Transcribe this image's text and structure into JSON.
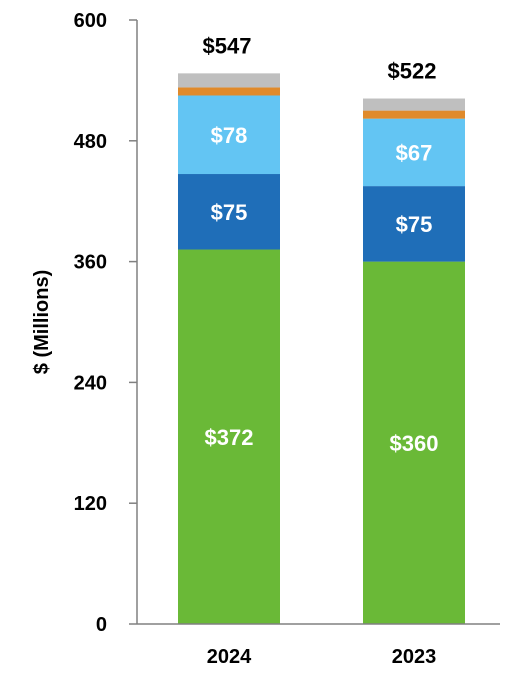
{
  "chart_data": {
    "type": "bar",
    "stacked": true,
    "categories": [
      "2024",
      "2023"
    ],
    "ylabel": "$ (Millions)",
    "ylim": [
      0,
      600
    ],
    "yticks": [
      0,
      120,
      240,
      360,
      480,
      600
    ],
    "grid": false,
    "series": [
      {
        "values": [
          372,
          360
        ],
        "color": "#6ab937",
        "labels": [
          "$372",
          "$360"
        ]
      },
      {
        "values": [
          75,
          75
        ],
        "color": "#1f6eb8",
        "labels": [
          "$75",
          "$75"
        ]
      },
      {
        "values": [
          78,
          67
        ],
        "color": "#63c5f3",
        "labels": [
          "$78",
          "$67"
        ]
      },
      {
        "values": [
          8,
          8
        ],
        "color": "#e08a2b",
        "labels": [
          "",
          ""
        ]
      },
      {
        "values": [
          14,
          12
        ],
        "color": "#bfbfbf",
        "labels": [
          "",
          ""
        ]
      }
    ],
    "totals": [
      "$547",
      "$522"
    ]
  }
}
